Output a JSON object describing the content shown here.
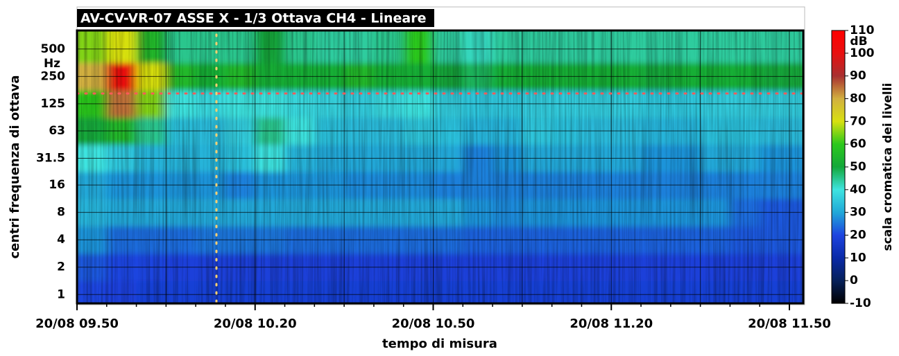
{
  "chart_data": {
    "type": "heatmap",
    "title": "AV-CV-VR-07 ASSE X - 1/3 Ottava CH4 - Lineare",
    "x_label": "tempo di misura",
    "y_label": "centri frequenza di ottava",
    "y_unit": "Hz",
    "bins": [
      "20/08 09.50",
      "20/08 09.55",
      "20/08 10.00",
      "20/08 10.05",
      "20/08 10.10",
      "20/08 10.15",
      "20/08 10.20",
      "20/08 10.25",
      "20/08 10.30",
      "20/08 10.35",
      "20/08 10.40",
      "20/08 10.45",
      "20/08 10.50",
      "20/08 10.55",
      "20/08 11.00",
      "20/08 11.05",
      "20/08 11.10",
      "20/08 11.15",
      "20/08 11.20",
      "20/08 11.25",
      "20/08 11.30",
      "20/08 11.35",
      "20/08 11.40",
      "20/08 11.45",
      "20/08 11.50"
    ],
    "xticks": [
      "20/08 09.50",
      "20/08 10.20",
      "20/08 10.50",
      "20/08 11.20",
      "20/08 11.50"
    ],
    "y": [
      1,
      2,
      4,
      8,
      16,
      31.5,
      63,
      125,
      250,
      500
    ],
    "log_y": true,
    "ylim": [
      0.8,
      800
    ],
    "yticks": [
      1,
      2,
      4,
      8,
      16,
      31.5,
      63,
      125,
      250,
      500
    ],
    "grid": true,
    "z": [
      [
        20,
        19,
        18,
        18,
        18,
        18,
        18,
        18,
        18,
        18,
        18,
        18,
        18,
        18,
        18,
        18,
        18,
        18,
        18,
        18,
        18,
        18,
        18,
        18
      ],
      [
        22,
        20,
        20,
        19,
        19,
        19,
        19,
        19,
        19,
        19,
        19,
        19,
        19,
        19,
        19,
        19,
        19,
        19,
        19,
        19,
        19,
        19,
        19,
        19
      ],
      [
        28,
        24,
        24,
        24,
        25,
        25,
        25,
        24,
        24,
        24,
        24,
        24,
        24,
        23,
        23,
        23,
        23,
        23,
        23,
        23,
        23,
        23,
        22,
        22
      ],
      [
        32,
        30,
        30,
        30,
        30,
        30,
        30,
        30,
        30,
        30,
        30,
        30,
        30,
        28,
        27,
        28,
        28,
        28,
        28,
        28,
        28,
        28,
        24,
        22
      ],
      [
        30,
        28,
        28,
        28,
        28,
        26,
        28,
        28,
        28,
        27,
        27,
        27,
        26,
        26,
        26,
        26,
        26,
        26,
        26,
        26,
        26,
        26,
        26,
        26
      ],
      [
        40,
        35,
        32,
        32,
        32,
        34,
        40,
        32,
        30,
        30,
        30,
        30,
        30,
        26,
        28,
        30,
        30,
        30,
        30,
        28,
        28,
        30,
        30,
        28
      ],
      [
        50,
        55,
        45,
        34,
        33,
        36,
        45,
        40,
        34,
        33,
        33,
        35,
        34,
        32,
        32,
        35,
        34,
        33,
        33,
        32,
        32,
        34,
        34,
        33
      ],
      [
        60,
        85,
        65,
        40,
        38,
        40,
        40,
        38,
        37,
        36,
        38,
        40,
        36,
        35,
        35,
        36,
        36,
        36,
        36,
        35,
        35,
        36,
        36,
        36
      ],
      [
        80,
        100,
        70,
        55,
        52,
        55,
        52,
        52,
        52,
        55,
        52,
        52,
        50,
        48,
        52,
        52,
        52,
        52,
        52,
        50,
        52,
        52,
        52,
        50
      ],
      [
        65,
        70,
        55,
        45,
        45,
        45,
        50,
        45,
        44,
        44,
        45,
        60,
        44,
        42,
        44,
        44,
        44,
        44,
        44,
        44,
        44,
        44,
        44,
        44
      ]
    ],
    "colorbar": {
      "label": "scala cromatica dei livelli",
      "unit": "dB",
      "lim": [
        -10,
        110
      ],
      "ticks": [
        -10,
        0,
        10,
        20,
        30,
        40,
        50,
        60,
        70,
        80,
        90,
        100,
        110
      ],
      "colors": [
        "#000000",
        "#06205a",
        "#0a2aa8",
        "#1d44e0",
        "#20a8d8",
        "#3ee4e0",
        "#13a83a",
        "#2cc81c",
        "#d8e010",
        "#d2b040",
        "#a83030",
        "#e81010",
        "#ff0000"
      ]
    }
  }
}
